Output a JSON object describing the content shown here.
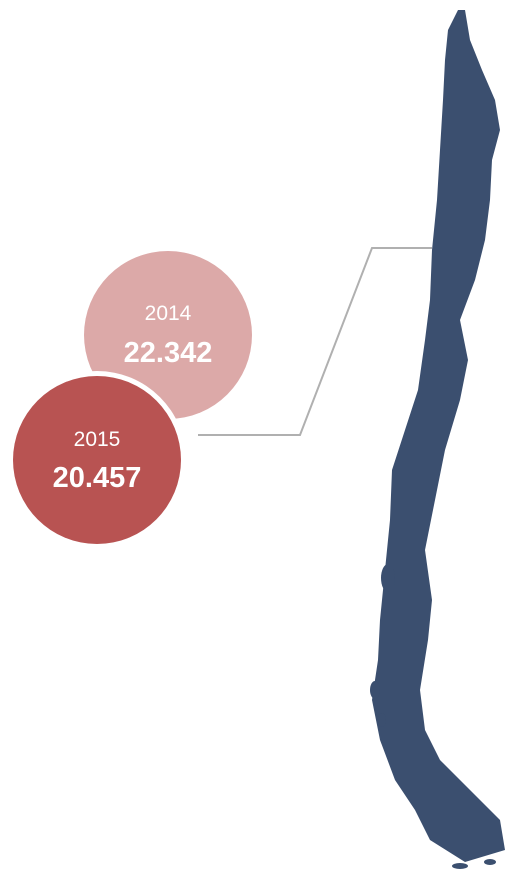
{
  "circles": [
    {
      "year": "2014",
      "value": "22.342"
    },
    {
      "year": "2015",
      "value": "20.457"
    }
  ]
}
